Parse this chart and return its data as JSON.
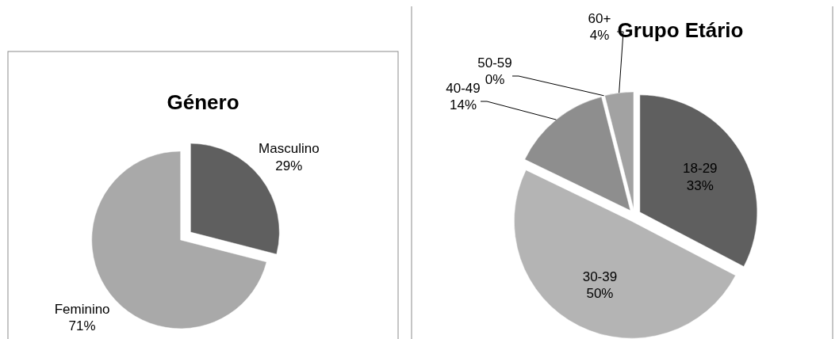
{
  "chart_data": [
    {
      "type": "pie",
      "title": "Género",
      "categories": [
        "Masculino",
        "Feminino"
      ],
      "values": [
        29,
        71
      ],
      "colors": [
        "#5f5f5f",
        "#a9a9a9"
      ],
      "value_labels": [
        "29%",
        "71%"
      ]
    },
    {
      "type": "pie",
      "title": "Grupo Etário",
      "categories": [
        "18-29",
        "30-39",
        "40-49",
        "50-59",
        "60+"
      ],
      "values": [
        33,
        50,
        14,
        0,
        4
      ],
      "colors": [
        "#5f5f5f",
        "#b4b4b4",
        "#8e8e8e",
        "#7a7a7a",
        "#a2a2a2"
      ],
      "value_labels": [
        "33%",
        "50%",
        "14%",
        "0%",
        "4%"
      ]
    }
  ]
}
